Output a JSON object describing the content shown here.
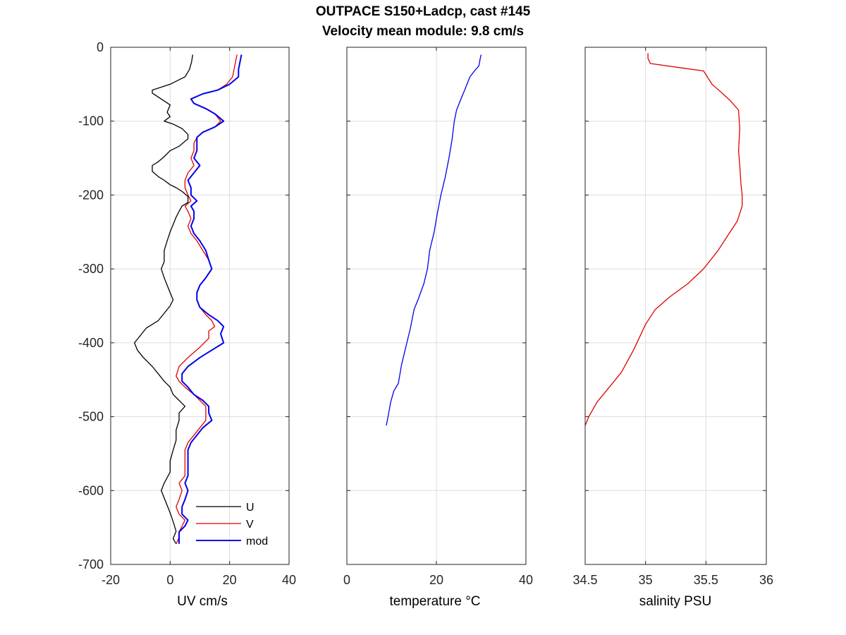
{
  "figure": {
    "title_line1": "OUTPACE S150+Ladcp, cast #145",
    "title_line2": "Velocity mean module:  9.8 cm/s"
  },
  "chart_data": [
    {
      "type": "line",
      "xlabel": "UV cm/s",
      "ylabel": "",
      "xlim": [
        -20,
        40
      ],
      "ylim": [
        -700,
        0
      ],
      "xticks": [
        "-20",
        "0",
        "20",
        "40"
      ],
      "yticks": [
        "0",
        "-100",
        "-200",
        "-300",
        "-400",
        "-500",
        "-600",
        "-700"
      ],
      "grid": true,
      "legend": "bottom-right",
      "series": [
        {
          "name": "U",
          "color": "#000000",
          "points": [
            [
              7.6,
              -10
            ],
            [
              7.2,
              -20
            ],
            [
              6.5,
              -30
            ],
            [
              5,
              -40
            ],
            [
              0,
              -50
            ],
            [
              -6,
              -58
            ],
            [
              -6,
              -62
            ],
            [
              -3,
              -70
            ],
            [
              0,
              -78
            ],
            [
              -1,
              -88
            ],
            [
              0,
              -94
            ],
            [
              -2,
              -100
            ],
            [
              1,
              -104
            ],
            [
              4,
              -110
            ],
            [
              6,
              -118
            ],
            [
              6,
              -124
            ],
            [
              3,
              -134
            ],
            [
              0,
              -140
            ],
            [
              -2,
              -148
            ],
            [
              -4,
              -155
            ],
            [
              -6,
              -160
            ],
            [
              -6,
              -168
            ],
            [
              -4,
              -175
            ],
            [
              -2,
              -180
            ],
            [
              0,
              -186
            ],
            [
              2,
              -190
            ],
            [
              4,
              -195
            ],
            [
              6,
              -202
            ],
            [
              6,
              -210
            ],
            [
              4,
              -215
            ],
            [
              3,
              -222
            ],
            [
              2,
              -230
            ],
            [
              1,
              -240
            ],
            [
              0,
              -250
            ],
            [
              -1,
              -262
            ],
            [
              -2,
              -275
            ],
            [
              -2,
              -290
            ],
            [
              -3,
              -300
            ],
            [
              -2,
              -312
            ],
            [
              -1,
              -322
            ],
            [
              0,
              -332
            ],
            [
              1,
              -342
            ],
            [
              0,
              -350
            ],
            [
              -2,
              -360
            ],
            [
              -4,
              -370
            ],
            [
              -8,
              -380
            ],
            [
              -10,
              -390
            ],
            [
              -12,
              -400
            ],
            [
              -11,
              -410
            ],
            [
              -9,
              -420
            ],
            [
              -6,
              -432
            ],
            [
              -4,
              -442
            ],
            [
              -2,
              -452
            ],
            [
              0,
              -460
            ],
            [
              1,
              -470
            ],
            [
              3,
              -478
            ],
            [
              5,
              -486
            ],
            [
              3,
              -495
            ],
            [
              3,
              -505
            ],
            [
              2,
              -518
            ],
            [
              2,
              -532
            ],
            [
              1,
              -545
            ],
            [
              0,
              -560
            ],
            [
              0,
              -575
            ],
            [
              -2,
              -590
            ],
            [
              -3,
              -600
            ],
            [
              -2,
              -610
            ],
            [
              -1,
              -620
            ],
            [
              0,
              -630
            ],
            [
              1,
              -642
            ],
            [
              2,
              -655
            ],
            [
              1,
              -665
            ],
            [
              2,
              -672
            ]
          ]
        },
        {
          "name": "V",
          "color": "#e00000",
          "points": [
            [
              22.5,
              -10
            ],
            [
              22,
              -20
            ],
            [
              21.5,
              -30
            ],
            [
              21,
              -40
            ],
            [
              19,
              -50
            ],
            [
              16,
              -58
            ],
            [
              11,
              -63
            ],
            [
              7,
              -70
            ],
            [
              8,
              -76
            ],
            [
              12,
              -83
            ],
            [
              15,
              -90
            ],
            [
              17,
              -100
            ],
            [
              15,
              -108
            ],
            [
              11,
              -115
            ],
            [
              9,
              -122
            ],
            [
              8,
              -130
            ],
            [
              8,
              -140
            ],
            [
              7,
              -150
            ],
            [
              8,
              -160
            ],
            [
              6,
              -170
            ],
            [
              5,
              -180
            ],
            [
              5,
              -190
            ],
            [
              6,
              -200
            ],
            [
              7,
              -208
            ],
            [
              5,
              -215
            ],
            [
              6,
              -222
            ],
            [
              7,
              -232
            ],
            [
              6,
              -242
            ],
            [
              7,
              -252
            ],
            [
              9,
              -262
            ],
            [
              11,
              -275
            ],
            [
              13,
              -288
            ],
            [
              14,
              -300
            ],
            [
              12,
              -312
            ],
            [
              10,
              -322
            ],
            [
              9,
              -332
            ],
            [
              9,
              -342
            ],
            [
              10,
              -352
            ],
            [
              12,
              -362
            ],
            [
              14,
              -370
            ],
            [
              15,
              -378
            ],
            [
              13,
              -384
            ],
            [
              13,
              -394
            ],
            [
              10,
              -406
            ],
            [
              6,
              -420
            ],
            [
              3,
              -432
            ],
            [
              2,
              -445
            ],
            [
              3,
              -452
            ],
            [
              5,
              -460
            ],
            [
              8,
              -470
            ],
            [
              10,
              -478
            ],
            [
              12,
              -486
            ],
            [
              12,
              -495
            ],
            [
              12,
              -505
            ],
            [
              10,
              -515
            ],
            [
              8,
              -525
            ],
            [
              6,
              -535
            ],
            [
              5,
              -545
            ],
            [
              5,
              -560
            ],
            [
              5,
              -570
            ],
            [
              5,
              -580
            ],
            [
              3,
              -590
            ],
            [
              4,
              -600
            ],
            [
              3,
              -612
            ],
            [
              2,
              -622
            ],
            [
              3,
              -632
            ],
            [
              5,
              -640
            ],
            [
              4,
              -648
            ],
            [
              3,
              -656
            ],
            [
              3,
              -664
            ],
            [
              2,
              -672
            ]
          ]
        },
        {
          "name": "mod",
          "color": "#0000ee",
          "points": [
            [
              24,
              -10
            ],
            [
              23.5,
              -20
            ],
            [
              23,
              -30
            ],
            [
              23,
              -40
            ],
            [
              20,
              -50
            ],
            [
              16,
              -58
            ],
            [
              11,
              -63
            ],
            [
              7,
              -70
            ],
            [
              8,
              -76
            ],
            [
              12,
              -83
            ],
            [
              15,
              -90
            ],
            [
              18,
              -100
            ],
            [
              15,
              -108
            ],
            [
              11,
              -115
            ],
            [
              9,
              -122
            ],
            [
              9,
              -130
            ],
            [
              9,
              -140
            ],
            [
              8,
              -150
            ],
            [
              10,
              -160
            ],
            [
              8,
              -170
            ],
            [
              6,
              -180
            ],
            [
              7,
              -190
            ],
            [
              7,
              -200
            ],
            [
              9,
              -208
            ],
            [
              7,
              -215
            ],
            [
              8,
              -222
            ],
            [
              8,
              -232
            ],
            [
              7,
              -242
            ],
            [
              8,
              -252
            ],
            [
              10,
              -262
            ],
            [
              12,
              -275
            ],
            [
              13,
              -288
            ],
            [
              14,
              -300
            ],
            [
              12,
              -312
            ],
            [
              10,
              -322
            ],
            [
              9,
              -332
            ],
            [
              9,
              -342
            ],
            [
              10,
              -352
            ],
            [
              13,
              -362
            ],
            [
              16,
              -370
            ],
            [
              18,
              -378
            ],
            [
              17,
              -388
            ],
            [
              18,
              -400
            ],
            [
              14,
              -410
            ],
            [
              10,
              -420
            ],
            [
              6,
              -432
            ],
            [
              4,
              -442
            ],
            [
              4,
              -452
            ],
            [
              6,
              -460
            ],
            [
              8,
              -470
            ],
            [
              11,
              -478
            ],
            [
              13,
              -486
            ],
            [
              13,
              -495
            ],
            [
              14,
              -505
            ],
            [
              11,
              -515
            ],
            [
              9,
              -525
            ],
            [
              7,
              -535
            ],
            [
              6,
              -545
            ],
            [
              6,
              -560
            ],
            [
              6,
              -570
            ],
            [
              6,
              -580
            ],
            [
              5,
              -590
            ],
            [
              6,
              -600
            ],
            [
              5,
              -612
            ],
            [
              4,
              -622
            ],
            [
              4,
              -632
            ],
            [
              6,
              -640
            ],
            [
              5,
              -648
            ],
            [
              3,
              -656
            ],
            [
              3,
              -664
            ],
            [
              3,
              -672
            ]
          ]
        }
      ]
    },
    {
      "type": "line",
      "xlabel": "temperature °C",
      "ylabel": "",
      "xlim": [
        0,
        40
      ],
      "ylim": [
        -700,
        0
      ],
      "xticks": [
        "0",
        "20",
        "40"
      ],
      "yticks": [],
      "grid": true,
      "series": [
        {
          "color": "#0000ee",
          "points": [
            [
              30,
              -10
            ],
            [
              29.8,
              -15
            ],
            [
              29.5,
              -25
            ],
            [
              28.5,
              -32
            ],
            [
              27.5,
              -40
            ],
            [
              26.5,
              -55
            ],
            [
              25.5,
              -70
            ],
            [
              24.5,
              -85
            ],
            [
              24,
              -100
            ],
            [
              23.5,
              -125
            ],
            [
              22.8,
              -150
            ],
            [
              22,
              -175
            ],
            [
              21,
              -200
            ],
            [
              20.2,
              -225
            ],
            [
              19.5,
              -250
            ],
            [
              18.5,
              -275
            ],
            [
              18,
              -300
            ],
            [
              17.2,
              -320
            ],
            [
              16,
              -340
            ],
            [
              15,
              -355
            ],
            [
              14.2,
              -380
            ],
            [
              13.2,
              -405
            ],
            [
              12.2,
              -430
            ],
            [
              11.5,
              -455
            ],
            [
              10.5,
              -465
            ],
            [
              9.8,
              -480
            ],
            [
              9.2,
              -500
            ],
            [
              8.8,
              -512
            ]
          ]
        }
      ]
    },
    {
      "type": "line",
      "xlabel": "salinity PSU",
      "ylabel": "",
      "xlim": [
        34.5,
        36
      ],
      "ylim": [
        -700,
        0
      ],
      "xticks": [
        "34.5",
        "35",
        "35.5",
        "36"
      ],
      "yticks": [],
      "grid": true,
      "series": [
        {
          "color": "#e00000",
          "points": [
            [
              35.02,
              -8
            ],
            [
              35.02,
              -15
            ],
            [
              35.04,
              -22
            ],
            [
              35.3,
              -28
            ],
            [
              35.48,
              -32
            ],
            [
              35.55,
              -50
            ],
            [
              35.62,
              -60
            ],
            [
              35.7,
              -72
            ],
            [
              35.77,
              -85
            ],
            [
              35.78,
              -110
            ],
            [
              35.77,
              -140
            ],
            [
              35.78,
              -160
            ],
            [
              35.79,
              -185
            ],
            [
              35.8,
              -200
            ],
            [
              35.8,
              -215
            ],
            [
              35.76,
              -235
            ],
            [
              35.68,
              -255
            ],
            [
              35.6,
              -275
            ],
            [
              35.48,
              -300
            ],
            [
              35.35,
              -320
            ],
            [
              35.2,
              -338
            ],
            [
              35.08,
              -355
            ],
            [
              35.0,
              -375
            ],
            [
              34.9,
              -410
            ],
            [
              34.8,
              -440
            ],
            [
              34.7,
              -460
            ],
            [
              34.6,
              -480
            ],
            [
              34.53,
              -500
            ],
            [
              34.5,
              -512
            ]
          ]
        }
      ]
    }
  ]
}
